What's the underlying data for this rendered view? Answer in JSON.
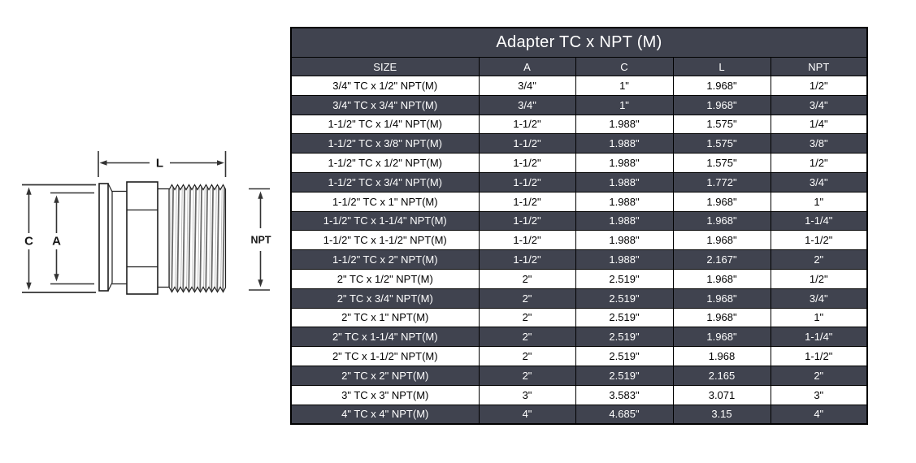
{
  "colors": {
    "dark_row_bg": "#40434F",
    "light_row_bg": "#FFFFFF",
    "table_border": "#000000",
    "dark_row_text": "#FFFFFF",
    "light_row_text": "#000000"
  },
  "diagram": {
    "description": "dimensioned line drawing of TC x NPT male adapter",
    "labels": {
      "L": "L",
      "C": "C",
      "A": "A",
      "NPT": "NPT"
    }
  },
  "table": {
    "title": "Adapter TC x NPT (M)",
    "columns": [
      "SIZE",
      "A",
      "C",
      "L",
      "NPT"
    ],
    "rows": [
      [
        "3/4\" TC x 1/2\" NPT(M)",
        "3/4\"",
        "1\"",
        "1.968\"",
        "1/2\""
      ],
      [
        "3/4\" TC x 3/4\" NPT(M)",
        "3/4\"",
        "1\"",
        "1.968\"",
        "3/4\""
      ],
      [
        "1-1/2\" TC x 1/4\" NPT(M)",
        "1-1/2\"",
        "1.988\"",
        "1.575\"",
        "1/4\""
      ],
      [
        "1-1/2\" TC x 3/8\" NPT(M)",
        "1-1/2\"",
        "1.988\"",
        "1.575\"",
        "3/8\""
      ],
      [
        "1-1/2\" TC x 1/2\" NPT(M)",
        "1-1/2\"",
        "1.988\"",
        "1.575\"",
        "1/2\""
      ],
      [
        "1-1/2\" TC x 3/4\" NPT(M)",
        "1-1/2\"",
        "1.988\"",
        "1.772\"",
        "3/4\""
      ],
      [
        "1-1/2\" TC x 1\" NPT(M)",
        "1-1/2\"",
        "1.988\"",
        "1.968\"",
        "1\""
      ],
      [
        "1-1/2\" TC x 1-1/4\" NPT(M)",
        "1-1/2\"",
        "1.988\"",
        "1.968\"",
        "1-1/4\""
      ],
      [
        "1-1/2\" TC x 1-1/2\" NPT(M)",
        "1-1/2\"",
        "1.988\"",
        "1.968\"",
        "1-1/2\""
      ],
      [
        "1-1/2\" TC x 2\" NPT(M)",
        "1-1/2\"",
        "1.988\"",
        "2.167\"",
        "2\""
      ],
      [
        "2\" TC x 1/2\" NPT(M)",
        "2\"",
        "2.519\"",
        "1.968\"",
        "1/2\""
      ],
      [
        "2\" TC x 3/4\" NPT(M)",
        "2\"",
        "2.519\"",
        "1.968\"",
        "3/4\""
      ],
      [
        "2\" TC x 1\" NPT(M)",
        "2\"",
        "2.519\"",
        "1.968\"",
        "1\""
      ],
      [
        "2\" TC x 1-1/4\" NPT(M)",
        "2\"",
        "2.519\"",
        "1.968\"",
        "1-1/4\""
      ],
      [
        "2\" TC x 1-1/2\" NPT(M)",
        "2\"",
        "2.519\"",
        "1.968",
        "1-1/2\""
      ],
      [
        "2\" TC x 2\" NPT(M)",
        "2\"",
        "2.519\"",
        "2.165",
        "2\""
      ],
      [
        "3\" TC x 3\" NPT(M)",
        "3\"",
        "3.583\"",
        "3.071",
        "3\""
      ],
      [
        "4\" TC x 4\" NPT(M)",
        "4\"",
        "4.685\"",
        "3.15",
        "4\""
      ]
    ]
  }
}
